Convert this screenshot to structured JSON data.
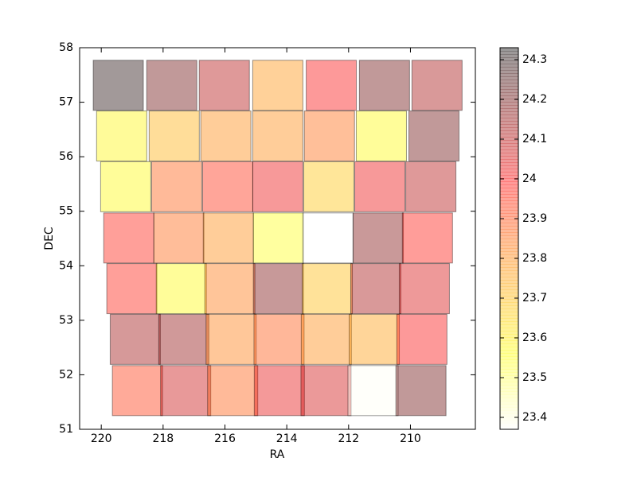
{
  "chart_data": {
    "type": "tiles",
    "x_label": "RA",
    "y_label": "DEC",
    "xlim": [
      220.7,
      207.9
    ],
    "ylim": [
      51,
      58
    ],
    "xticks": [
      220,
      218,
      216,
      214,
      212,
      210
    ],
    "yticks": [
      51,
      52,
      53,
      54,
      55,
      56,
      57,
      58
    ],
    "clim": [
      23.37,
      24.33
    ],
    "cticks": [
      23.4,
      23.5,
      23.6,
      23.7,
      23.8,
      23.9,
      24.0,
      24.1,
      24.2,
      24.3
    ],
    "x": [
      219.45,
      217.72,
      216.02,
      214.29,
      212.56,
      210.84,
      209.14,
      219.34,
      217.64,
      215.97,
      214.29,
      212.62,
      210.94,
      209.24,
      219.21,
      217.56,
      215.91,
      214.29,
      212.64,
      210.99,
      209.34,
      219.11,
      217.49,
      215.89,
      214.27,
      212.67,
      211.04,
      209.45,
      219.01,
      217.41,
      215.84,
      214.27,
      212.69,
      211.12,
      209.55,
      218.9,
      217.33,
      215.8,
      214.25,
      212.72,
      211.17,
      209.63,
      218.83,
      217.27,
      215.75,
      214.24,
      212.73,
      211.21,
      209.66
    ],
    "y": [
      57.31,
      57.31,
      57.31,
      57.31,
      57.31,
      57.31,
      57.31,
      56.38,
      56.38,
      56.38,
      56.38,
      56.38,
      56.38,
      56.38,
      55.45,
      55.45,
      55.45,
      55.45,
      55.45,
      55.45,
      55.45,
      54.51,
      54.51,
      54.51,
      54.51,
      54.51,
      54.51,
      54.51,
      53.58,
      53.58,
      53.58,
      53.58,
      53.58,
      53.58,
      53.58,
      52.65,
      52.65,
      52.65,
      52.65,
      52.65,
      52.65,
      52.65,
      51.71,
      51.71,
      51.71,
      51.71,
      51.71,
      51.71,
      51.71
    ],
    "values": [
      24.3,
      24.2,
      24.1,
      23.78,
      24.0,
      24.2,
      24.12,
      23.58,
      23.72,
      23.8,
      23.8,
      23.85,
      23.57,
      24.2,
      23.57,
      23.87,
      23.95,
      24.02,
      23.68,
      24.02,
      24.1,
      23.97,
      23.86,
      23.8,
      23.55,
      23.37,
      24.17,
      23.98,
      23.97,
      23.57,
      23.83,
      24.18,
      23.7,
      24.12,
      24.05,
      24.13,
      24.15,
      23.82,
      23.88,
      23.8,
      23.76,
      24.0,
      23.93,
      24.07,
      23.87,
      24.03,
      24.06,
      23.38,
      24.2
    ]
  }
}
